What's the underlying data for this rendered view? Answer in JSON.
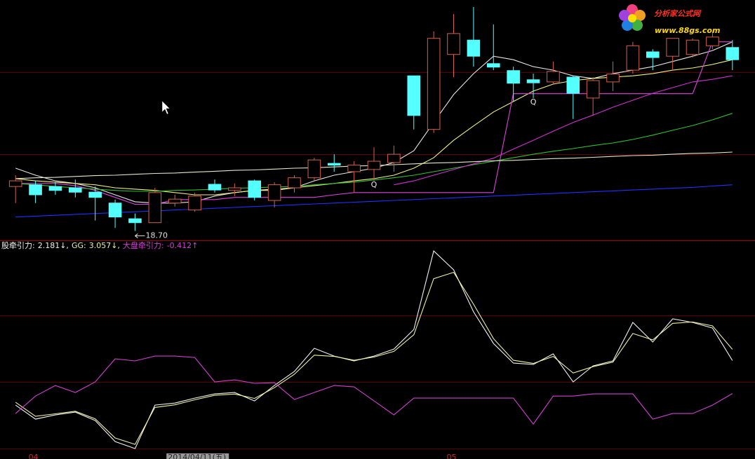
{
  "chart_data": [
    {
      "type": "candlestick",
      "ylim": [
        18.5,
        24.0
      ],
      "up_color": "#d8604c",
      "down_color": "#54ffff",
      "open": [
        19.72,
        19.76,
        19.72,
        19.69,
        19.59,
        19.34,
        18.98,
        18.89,
        19.34,
        19.18,
        19.77,
        19.63,
        19.85,
        19.4,
        19.69,
        19.92,
        20.25,
        20.06,
        20.11,
        20.27,
        22.26,
        21.03,
        22.75,
        23.08,
        22.54,
        22.38,
        22.17,
        22.12,
        22.23,
        21.75,
        22.12,
        22.39,
        22.81,
        22.71,
        22.75,
        22.95,
        22.91
      ],
      "high": [
        19.98,
        19.85,
        19.82,
        19.88,
        19.72,
        19.42,
        19.1,
        19.69,
        19.53,
        19.58,
        19.88,
        19.79,
        19.88,
        19.82,
        19.98,
        20.38,
        20.46,
        20.3,
        20.62,
        20.66,
        22.26,
        23.28,
        23.68,
        23.84,
        23.44,
        22.47,
        22.31,
        22.59,
        22.26,
        22.23,
        22.59,
        23.04,
        22.87,
        23.12,
        23.12,
        23.28,
        23.08
      ],
      "low": [
        19.34,
        19.34,
        19.53,
        19.47,
        18.94,
        18.77,
        18.7,
        18.89,
        19.26,
        19.14,
        19.58,
        19.5,
        19.4,
        19.24,
        19.58,
        19.85,
        20.06,
        19.58,
        19.85,
        20.06,
        21.03,
        20.95,
        22.23,
        22.47,
        22.39,
        21.67,
        21.75,
        22.07,
        21.27,
        21.35,
        21.91,
        22.31,
        22.39,
        22.39,
        22.68,
        22.87,
        22.39
      ],
      "close": [
        19.85,
        19.53,
        19.63,
        19.59,
        19.47,
        19.02,
        18.89,
        19.58,
        19.43,
        19.5,
        19.64,
        19.69,
        19.47,
        19.76,
        19.92,
        20.33,
        20.21,
        20.21,
        20.3,
        20.46,
        21.35,
        23.12,
        23.23,
        22.71,
        22.46,
        22.09,
        22.1,
        22.36,
        21.86,
        22.15,
        22.3,
        22.95,
        22.68,
        23.12,
        23.08,
        23.15,
        22.63
      ],
      "low_label": "18.70",
      "signals": [
        null,
        null,
        null,
        null,
        null,
        null,
        null,
        null,
        null,
        null,
        null,
        null,
        null,
        null,
        null,
        null,
        null,
        null,
        "Q",
        null,
        null,
        null,
        null,
        null,
        null,
        null,
        "Q",
        null,
        null,
        null,
        null,
        null,
        null,
        null,
        null,
        null,
        null
      ],
      "series": [
        {
          "color": "#e6e6e6",
          "values": [
            20.14,
            19.98,
            19.85,
            19.79,
            19.69,
            19.53,
            19.37,
            19.34,
            19.34,
            19.37,
            19.5,
            19.58,
            19.63,
            19.63,
            19.69,
            19.85,
            19.98,
            20.06,
            20.14,
            20.27,
            20.54,
            21.19,
            21.83,
            22.31,
            22.71,
            22.63,
            22.47,
            22.39,
            22.26,
            22.2,
            22.31,
            22.39,
            22.47,
            22.59,
            22.71,
            22.84,
            23.04
          ]
        },
        {
          "color": "#f0f080",
          "values": [
            19.9,
            19.85,
            19.82,
            19.79,
            19.76,
            19.69,
            19.66,
            19.63,
            19.58,
            19.53,
            19.53,
            19.58,
            19.63,
            19.66,
            19.69,
            19.74,
            19.79,
            19.85,
            19.9,
            19.98,
            20.14,
            20.38,
            20.78,
            21.11,
            21.43,
            21.67,
            21.91,
            22.07,
            22.15,
            22.2,
            22.23,
            22.26,
            22.31,
            22.39,
            22.44,
            22.52,
            22.63
          ]
        },
        {
          "color": "#e040e0",
          "values": [
            19.79,
            19.79,
            19.79,
            19.74,
            19.63,
            19.47,
            19.31,
            19.31,
            19.42,
            19.42,
            19.42,
            19.47,
            19.47,
            19.47,
            19.47,
            19.47,
            19.53,
            19.58,
            19.58,
            19.58,
            19.58,
            19.58,
            19.58,
            19.58,
            19.58,
            21.85,
            21.85,
            21.85,
            21.85,
            21.85,
            21.85,
            21.85,
            21.85,
            21.85,
            21.85,
            23.04,
            23.04
          ]
        },
        {
          "color": "#30c030",
          "values": [
            19.79,
            19.76,
            19.72,
            19.69,
            19.66,
            19.63,
            19.61,
            19.61,
            19.63,
            19.64,
            19.66,
            19.68,
            19.69,
            19.71,
            19.72,
            19.76,
            19.79,
            19.82,
            19.87,
            19.92,
            19.98,
            20.06,
            20.14,
            20.22,
            20.3,
            20.38,
            20.46,
            20.53,
            20.59,
            20.66,
            20.72,
            20.8,
            20.9,
            21.01,
            21.12,
            21.25,
            21.4
          ]
        },
        {
          "color": "#d030d0",
          "values": [
            null,
            null,
            null,
            null,
            null,
            null,
            null,
            null,
            null,
            null,
            null,
            null,
            null,
            null,
            null,
            null,
            null,
            null,
            null,
            19.76,
            19.85,
            19.98,
            20.11,
            20.24,
            20.37,
            20.58,
            20.78,
            20.99,
            21.19,
            21.36,
            21.54,
            21.7,
            21.86,
            21.99,
            22.12,
            22.18,
            22.26
          ]
        },
        {
          "color": "#2030ff",
          "values": [
            19.02,
            19.04,
            19.06,
            19.08,
            19.1,
            19.12,
            19.14,
            19.16,
            19.18,
            19.2,
            19.22,
            19.24,
            19.26,
            19.28,
            19.3,
            19.32,
            19.34,
            19.36,
            19.38,
            19.4,
            19.42,
            19.44,
            19.46,
            19.48,
            19.5,
            19.52,
            19.54,
            19.56,
            19.58,
            19.6,
            19.62,
            19.64,
            19.66,
            19.68,
            19.7,
            19.73,
            19.76
          ]
        },
        {
          "color": "#e8e8c8",
          "values": [
            19.9,
            19.92,
            19.93,
            19.95,
            19.97,
            19.98,
            20.0,
            20.02,
            20.03,
            20.05,
            20.07,
            20.09,
            20.1,
            20.12,
            20.14,
            20.15,
            20.17,
            20.19,
            20.2,
            20.22,
            20.24,
            20.26,
            20.27,
            20.29,
            20.31,
            20.32,
            20.34,
            20.36,
            20.37,
            20.39,
            20.41,
            20.43,
            20.44,
            20.46,
            20.48,
            20.49,
            20.51
          ]
        }
      ]
    },
    {
      "type": "line",
      "ylim": [
        -5,
        11.5
      ],
      "categories": [
        null,
        "04",
        null,
        null,
        null,
        null,
        null,
        null,
        "2014/04/11(五)",
        null,
        null,
        null,
        null,
        null,
        null,
        null,
        null,
        null,
        null,
        null,
        null,
        null,
        "05",
        null,
        null,
        null,
        null,
        null,
        null,
        null,
        null,
        null,
        null,
        null,
        null,
        null,
        null
      ],
      "series": [
        {
          "name": "股牵引力:",
          "last_label": "2.181↓,",
          "color": "#f0f0f0",
          "values": [
            -1.32,
            -2.42,
            -2.09,
            -1.87,
            -2.53,
            -4.18,
            -4.73,
            -1.32,
            -1.16,
            -0.77,
            -0.44,
            -0.33,
            -0.99,
            0.22,
            1.32,
            3.14,
            2.53,
            2.15,
            2.53,
            3.08,
            4.62,
            10.78,
            9.3,
            6.0,
            3.52,
            1.98,
            1.87,
            2.7,
            0.5,
            1.76,
            2.15,
            5.17,
            3.63,
            5.45,
            5.17,
            4.73,
            2.181
          ]
        },
        {
          "name": "GG:",
          "last_label": "3.057↓,",
          "color": "#f0f0a0",
          "values": [
            -1.1,
            -2.2,
            -2.0,
            -1.8,
            -2.4,
            -3.9,
            -4.4,
            -1.5,
            -1.3,
            -0.9,
            -0.55,
            -0.45,
            -0.8,
            0.05,
            1.1,
            2.6,
            2.5,
            2.2,
            2.45,
            2.9,
            4.2,
            8.6,
            9.1,
            6.6,
            3.9,
            2.2,
            1.95,
            2.5,
            1.2,
            1.7,
            2.05,
            4.3,
            3.8,
            5.1,
            5.2,
            4.9,
            3.057
          ]
        },
        {
          "name": "大盘牵引力:",
          "last_label": "-0.412↑",
          "color": "#d040d0",
          "values": [
            -1.98,
            -0.61,
            0.22,
            -0.33,
            0.5,
            2.31,
            2.15,
            2.53,
            2.53,
            2.42,
            0.5,
            0.66,
            0.39,
            0.44,
            -0.88,
            -0.33,
            0.22,
            0.11,
            -0.99,
            -2.09,
            -0.77,
            -0.77,
            -0.77,
            -0.77,
            -0.77,
            -0.77,
            -2.81,
            -0.61,
            -0.61,
            -0.44,
            -0.44,
            -0.44,
            -2.42,
            -1.98,
            -1.98,
            -1.32,
            -0.412
          ]
        }
      ]
    }
  ],
  "logo": {
    "title": "分析家公式网",
    "url": "www.88gs.com"
  }
}
